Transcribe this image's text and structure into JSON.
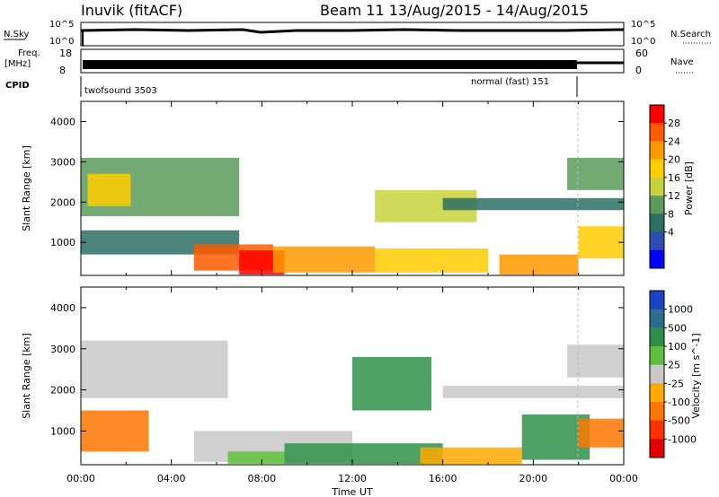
{
  "header": {
    "station_title": "Inuvik (fitACF)",
    "beam_title": "Beam 11  13/Aug/2015 - 14/Aug/2015"
  },
  "top_panels": {
    "nsky_label": "N.Sky",
    "nsky_ticks": [
      "10^5",
      "10^0"
    ],
    "nsearch_label": "N.Search",
    "nsearch_ticks": [
      "10^5",
      "10^0"
    ],
    "freq_label_1": "Freq.",
    "freq_label_2": "[MHz]",
    "freq_ticks": [
      "18",
      "8"
    ],
    "nave_label": "Nave",
    "nave_ticks": [
      "60",
      "0"
    ],
    "cpid_label": "CPID",
    "cpid_modes": [
      "twofsound 3503",
      "normal (fast) 151"
    ]
  },
  "x_axis": {
    "label": "Time UT",
    "ticks": [
      "00:00",
      "04:00",
      "08:00",
      "12:00",
      "16:00",
      "20:00",
      "00:00"
    ]
  },
  "power_colorbar": {
    "label": "Power [dB]",
    "ticks": [
      "28",
      "24",
      "20",
      "16",
      "12",
      "8",
      "4"
    ],
    "colors": [
      "#ff0000",
      "#ff5a00",
      "#ff9900",
      "#ffcc00",
      "#c8d23c",
      "#5a9b5a",
      "#2c6e64",
      "#2c4eb0",
      "#0000ff"
    ]
  },
  "velocity_colorbar": {
    "label": "Velocity [m s^-1]",
    "ticks": [
      "1000",
      "500",
      "100",
      "25",
      "-25",
      "-100",
      "-500",
      "-1000"
    ],
    "colors": [
      "#1a44c4",
      "#2e6c8e",
      "#2f8f4a",
      "#5fbf3b",
      "#c8c8c8",
      "#ffaa00",
      "#ff7700",
      "#ff3000",
      "#e00000"
    ]
  },
  "chart_data": [
    {
      "type": "heatmap",
      "title": "",
      "xlabel": "Time UT",
      "ylabel": "Slant Range [km]",
      "xlim_hours": [
        0,
        24
      ],
      "ylim_km": [
        180,
        4500
      ],
      "yticks": [
        "1000",
        "2000",
        "3000",
        "4000"
      ],
      "quantity": "Power [dB]",
      "regions": [
        {
          "x": [
            0.0,
            7.0
          ],
          "y": [
            1650,
            3100
          ],
          "value": 14
        },
        {
          "x": [
            0.0,
            7.0
          ],
          "y": [
            700,
            1300
          ],
          "value": 10
        },
        {
          "x": [
            0.3,
            2.2
          ],
          "y": [
            1900,
            2700
          ],
          "value": 20
        },
        {
          "x": [
            5.0,
            8.5
          ],
          "y": [
            300,
            950
          ],
          "value": 27
        },
        {
          "x": [
            7.0,
            9.0
          ],
          "y": [
            200,
            800
          ],
          "value": 30
        },
        {
          "x": [
            8.5,
            13.0
          ],
          "y": [
            250,
            900
          ],
          "value": 24
        },
        {
          "x": [
            13.0,
            18.0
          ],
          "y": [
            250,
            850
          ],
          "value": 18
        },
        {
          "x": [
            18.5,
            22.0
          ],
          "y": [
            200,
            700
          ],
          "value": 22
        },
        {
          "x": [
            22.0,
            24.0
          ],
          "y": [
            600,
            1400
          ],
          "value": 20
        },
        {
          "x": [
            13.0,
            17.5
          ],
          "y": [
            1500,
            2300
          ],
          "value": 16
        },
        {
          "x": [
            16.0,
            24.0
          ],
          "y": [
            1800,
            2100
          ],
          "value": 10
        },
        {
          "x": [
            21.5,
            24.0
          ],
          "y": [
            2300,
            3100
          ],
          "value": 14
        }
      ]
    },
    {
      "type": "heatmap",
      "title": "",
      "xlabel": "Time UT",
      "ylabel": "Slant Range [km]",
      "xlim_hours": [
        0,
        24
      ],
      "ylim_km": [
        180,
        4500
      ],
      "yticks": [
        "1000",
        "2000",
        "3000",
        "4000"
      ],
      "quantity": "Velocity [m s^-1]",
      "regions": [
        {
          "x": [
            0.0,
            6.5
          ],
          "y": [
            1800,
            3200
          ],
          "value": 0
        },
        {
          "x": [
            0.0,
            3.0
          ],
          "y": [
            500,
            1500
          ],
          "value": -150
        },
        {
          "x": [
            5.0,
            12.0
          ],
          "y": [
            250,
            1000
          ],
          "value": 0
        },
        {
          "x": [
            6.5,
            9.0
          ],
          "y": [
            200,
            500
          ],
          "value": 80
        },
        {
          "x": [
            9.0,
            16.0
          ],
          "y": [
            200,
            700
          ],
          "value": 100
        },
        {
          "x": [
            12.0,
            15.5
          ],
          "y": [
            1500,
            2800
          ],
          "value": 150
        },
        {
          "x": [
            15.0,
            19.5
          ],
          "y": [
            200,
            600
          ],
          "value": -100
        },
        {
          "x": [
            19.5,
            22.5
          ],
          "y": [
            300,
            1400
          ],
          "value": 200
        },
        {
          "x": [
            22.0,
            24.0
          ],
          "y": [
            600,
            1300
          ],
          "value": -150
        },
        {
          "x": [
            16.0,
            24.0
          ],
          "y": [
            1800,
            2100
          ],
          "value": 0
        },
        {
          "x": [
            21.5,
            24.0
          ],
          "y": [
            2300,
            3100
          ],
          "value": 0
        }
      ]
    }
  ]
}
